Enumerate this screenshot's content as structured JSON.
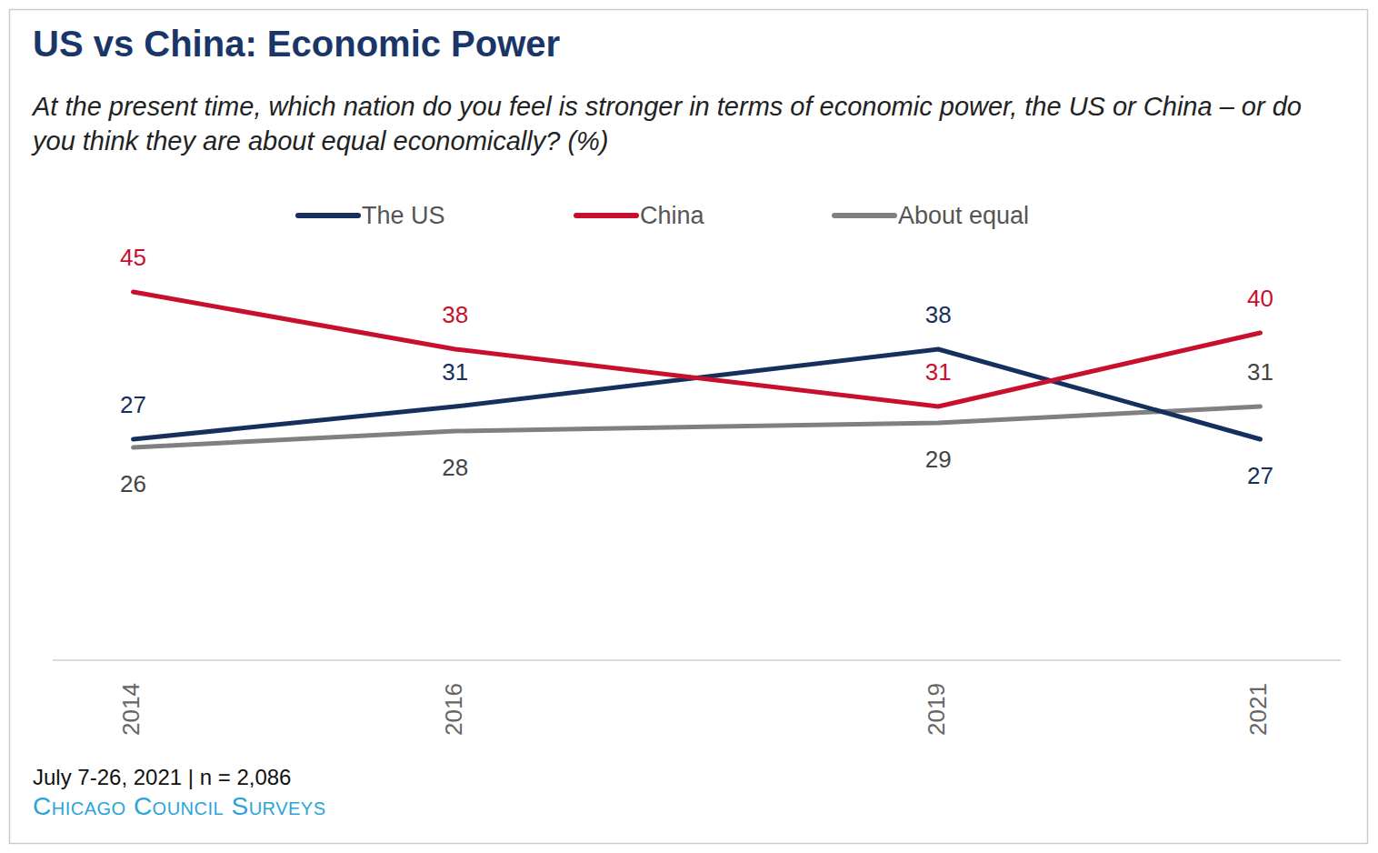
{
  "chart_data": {
    "type": "line",
    "title": "US vs China: Economic Power",
    "subtitle": "At the present time, which nation do you feel is stronger in terms of economic power, the US or China – or do you think they are about equal economically? (%)",
    "footnote": "July 7-26, 2021 | n = 2,086",
    "source": "Chicago Council Surveys",
    "x": [
      2014,
      2016,
      2019,
      2021
    ],
    "xlim": [
      2013.5,
      2021.5
    ],
    "xticks": [
      2014,
      2016,
      2019,
      2021
    ],
    "ylim": [
      0,
      50
    ],
    "tick_labels": "x",
    "grid": false,
    "legend": "top",
    "data_labels": true,
    "series": [
      {
        "name": "The US",
        "color": "#16305e",
        "values": [
          27,
          31,
          38,
          27
        ]
      },
      {
        "name": "China",
        "color": "#c8102e",
        "values": [
          45,
          38,
          31,
          40
        ]
      },
      {
        "name": "About equal",
        "color": "#808080",
        "values": [
          26,
          28,
          29,
          31
        ]
      }
    ]
  }
}
